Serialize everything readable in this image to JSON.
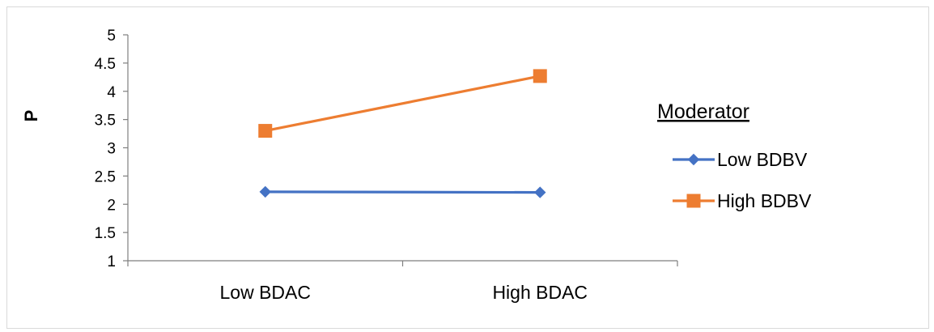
{
  "chart_data": {
    "type": "line",
    "categories": [
      "Low BDAC",
      "High BDAC"
    ],
    "series": [
      {
        "name": "Low BDBV",
        "values": [
          2.22,
          2.21
        ],
        "color": "#4472C4",
        "marker": "diamond"
      },
      {
        "name": "High BDBV",
        "values": [
          3.3,
          4.27
        ],
        "color": "#ED7D31",
        "marker": "square"
      }
    ],
    "ylabel": "P",
    "ylim": [
      1,
      5
    ],
    "yticks": [
      "1",
      "1.5",
      "2",
      "2.5",
      "3",
      "3.5",
      "4",
      "4.5",
      "5"
    ],
    "legend": {
      "title": "Moderator",
      "position": "right"
    },
    "grid": false
  }
}
